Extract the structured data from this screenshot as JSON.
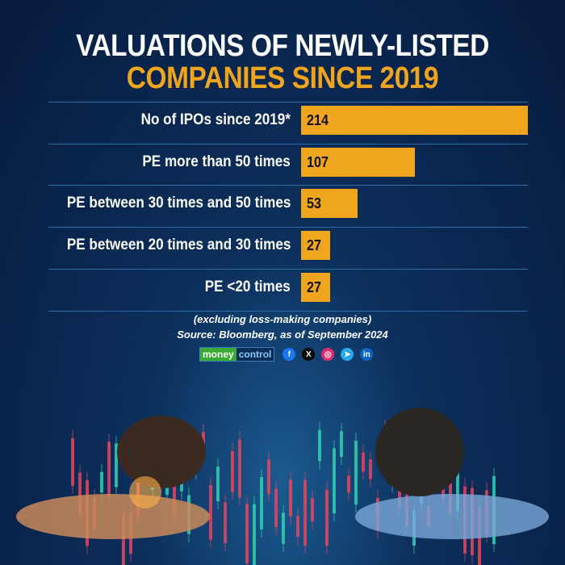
{
  "title_line1": "VALUATIONS OF NEWLY-LISTED",
  "title_line2": "COMPANIES SINCE 2019",
  "chart_data": {
    "type": "bar",
    "orientation": "horizontal",
    "title": "VALUATIONS OF NEWLY-LISTED COMPANIES SINCE 2019",
    "categories": [
      "No of IPOs since 2019*",
      "PE more than 50 times",
      "PE between 30 times and 50 times",
      "PE between 20 times and 30 times",
      "PE <20 times"
    ],
    "values": [
      214,
      107,
      53,
      27,
      27
    ],
    "value_labels": [
      "214",
      "107",
      "53",
      "27",
      "27"
    ],
    "xlim": [
      0,
      214
    ],
    "bar_color": "#f0a51f"
  },
  "footnote": "(excluding loss-making companies)",
  "source": "Source: Bloomberg, as of September 2024",
  "brand": {
    "part1": "money",
    "part2": "control"
  },
  "social": [
    {
      "icon": "facebook-icon",
      "glyph": "f",
      "color": "#1877f2"
    },
    {
      "icon": "x-icon",
      "glyph": "X",
      "color": "#000000"
    },
    {
      "icon": "instagram-icon",
      "glyph": "◎",
      "color": "#e1306c"
    },
    {
      "icon": "telegram-icon",
      "glyph": "➤",
      "color": "#29a9eb"
    },
    {
      "icon": "linkedin-icon",
      "glyph": "in",
      "color": "#0a66c2"
    }
  ]
}
